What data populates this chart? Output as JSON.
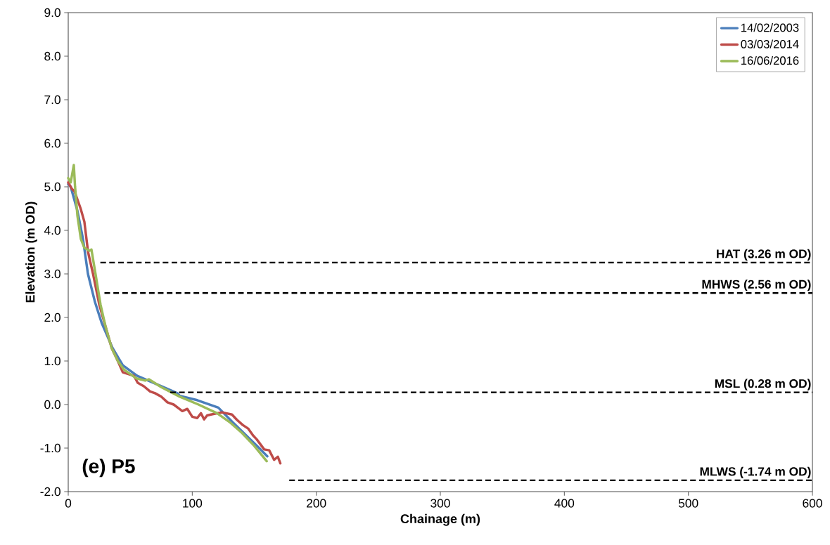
{
  "chart_data": {
    "type": "line",
    "xlabel": "Chainage (m)",
    "ylabel": "Elevation (m OD)",
    "annotations": [
      "(e) P5"
    ],
    "xlim": [
      0,
      600
    ],
    "xticks": [
      0,
      100,
      200,
      300,
      400,
      500,
      600
    ],
    "ylim": [
      -2,
      9
    ],
    "yticks": [
      {
        "value": -2,
        "label": "-2.0"
      },
      {
        "value": -1,
        "label": "-1.0"
      },
      {
        "value": 0,
        "label": "0.0"
      },
      {
        "value": 1,
        "label": "1.0"
      },
      {
        "value": 2,
        "label": "2.0"
      },
      {
        "value": 3,
        "label": "3.0"
      },
      {
        "value": 4,
        "label": "4.0"
      },
      {
        "value": 5,
        "label": "5.0"
      },
      {
        "value": 6,
        "label": "6.0"
      },
      {
        "value": 7,
        "label": "7.0"
      },
      {
        "value": 8,
        "label": "8.0"
      },
      {
        "value": 9,
        "label": "9.0"
      }
    ],
    "grid": false,
    "legend": "top right",
    "marker": "none",
    "line_style": "solid",
    "ref_lines": [
      {
        "axis": "y",
        "value": 3.26,
        "label": "HAT (3.26 m OD)",
        "color": "#000000",
        "line_style": "dashed"
      },
      {
        "axis": "y",
        "value": 2.56,
        "label": "MHWS (2.56 m OD)",
        "color": "#000000",
        "line_style": "dashed"
      },
      {
        "axis": "y",
        "value": 0.28,
        "label": "MSL (0.28 m OD)",
        "color": "#000000",
        "line_style": "dashed"
      },
      {
        "axis": "y",
        "value": -1.74,
        "label": "MLWS (-1.74 m OD)",
        "color": "#000000",
        "line_style": "dashed"
      }
    ],
    "series": [
      {
        "name": "14/02/2003",
        "color": "#4a7ebb",
        "x": [
          0,
          2,
          7.4,
          11.9,
          15.9,
          21.6,
          27,
          35.7,
          44,
          55.6,
          75,
          88,
          90,
          104,
          121,
          132,
          143.5,
          155,
          160.5
        ],
        "values": [
          5.06,
          5.0,
          4.45,
          3.8,
          3.0,
          2.35,
          1.87,
          1.3,
          0.9,
          0.66,
          0.42,
          0.26,
          0.2,
          0.1,
          -0.07,
          -0.39,
          -0.71,
          -1.03,
          -1.19
        ]
      },
      {
        "name": "03/03/2014",
        "color": "#be4b48",
        "x": [
          0,
          3,
          5,
          10,
          13,
          16,
          20,
          25,
          30,
          35,
          40,
          44,
          53,
          56,
          61,
          66,
          70,
          75,
          80,
          85,
          92,
          96,
          100,
          104,
          107,
          109.5,
          112,
          115,
          124,
          132,
          136,
          140.7,
          145,
          149,
          152,
          158,
          162,
          166,
          169,
          171
        ],
        "values": [
          5.1,
          4.95,
          4.9,
          4.5,
          4.2,
          3.5,
          3.0,
          2.3,
          1.8,
          1.3,
          1.0,
          0.74,
          0.66,
          0.5,
          0.42,
          0.3,
          0.26,
          0.18,
          0.05,
          0.0,
          -0.15,
          -0.1,
          -0.28,
          -0.31,
          -0.2,
          -0.34,
          -0.25,
          -0.23,
          -0.18,
          -0.23,
          -0.35,
          -0.47,
          -0.55,
          -0.71,
          -0.8,
          -1.03,
          -1.05,
          -1.27,
          -1.2,
          -1.35
        ]
      },
      {
        "name": "16/06/2016",
        "color": "#9bbb59",
        "x": [
          0,
          2,
          4.5,
          5.5,
          7.4,
          10.2,
          13,
          17,
          18.7,
          22,
          26,
          30,
          35,
          40,
          45,
          55,
          62,
          65,
          75,
          90,
          105,
          120,
          130,
          140,
          150,
          160
        ],
        "values": [
          5.2,
          5.1,
          5.5,
          5.0,
          4.34,
          3.8,
          3.6,
          3.53,
          3.56,
          3.0,
          2.3,
          1.8,
          1.3,
          1.0,
          0.8,
          0.6,
          0.55,
          0.58,
          0.4,
          0.18,
          0.0,
          -0.2,
          -0.4,
          -0.65,
          -0.95,
          -1.3
        ]
      }
    ]
  }
}
